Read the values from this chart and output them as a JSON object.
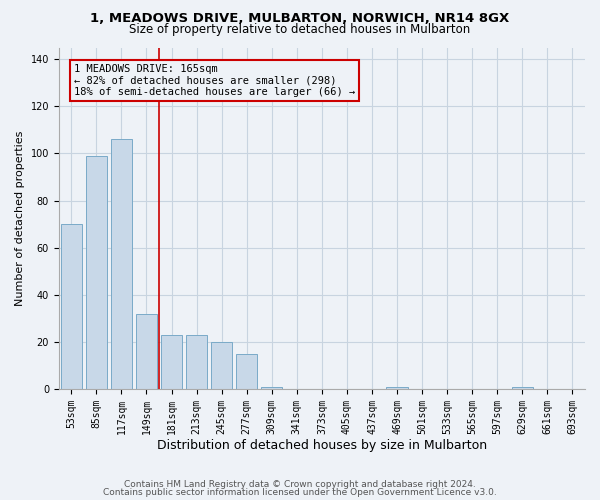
{
  "title": "1, MEADOWS DRIVE, MULBARTON, NORWICH, NR14 8GX",
  "subtitle": "Size of property relative to detached houses in Mulbarton",
  "xlabel": "Distribution of detached houses by size in Mulbarton",
  "ylabel": "Number of detached properties",
  "categories": [
    "53sqm",
    "85sqm",
    "117sqm",
    "149sqm",
    "181sqm",
    "213sqm",
    "245sqm",
    "277sqm",
    "309sqm",
    "341sqm",
    "373sqm",
    "405sqm",
    "437sqm",
    "469sqm",
    "501sqm",
    "533sqm",
    "565sqm",
    "597sqm",
    "629sqm",
    "661sqm",
    "693sqm"
  ],
  "values": [
    70,
    99,
    106,
    32,
    23,
    23,
    20,
    15,
    1,
    0,
    0,
    0,
    0,
    1,
    0,
    0,
    0,
    0,
    1,
    0,
    0
  ],
  "bar_color": "#c8d8e8",
  "bar_edge_color": "#7aaac8",
  "grid_color": "#c8d4e0",
  "background_color": "#eef2f7",
  "vline_x": 3.5,
  "vline_color": "#cc0000",
  "annotation_text": "1 MEADOWS DRIVE: 165sqm\n← 82% of detached houses are smaller (298)\n18% of semi-detached houses are larger (66) →",
  "annotation_box_color": "#cc0000",
  "ylim": [
    0,
    145
  ],
  "yticks": [
    0,
    20,
    40,
    60,
    80,
    100,
    120,
    140
  ],
  "footer1": "Contains HM Land Registry data © Crown copyright and database right 2024.",
  "footer2": "Contains public sector information licensed under the Open Government Licence v3.0.",
  "title_fontsize": 9.5,
  "subtitle_fontsize": 8.5,
  "xlabel_fontsize": 9,
  "ylabel_fontsize": 8,
  "tick_fontsize": 7,
  "annotation_fontsize": 7.5,
  "footer_fontsize": 6.5
}
